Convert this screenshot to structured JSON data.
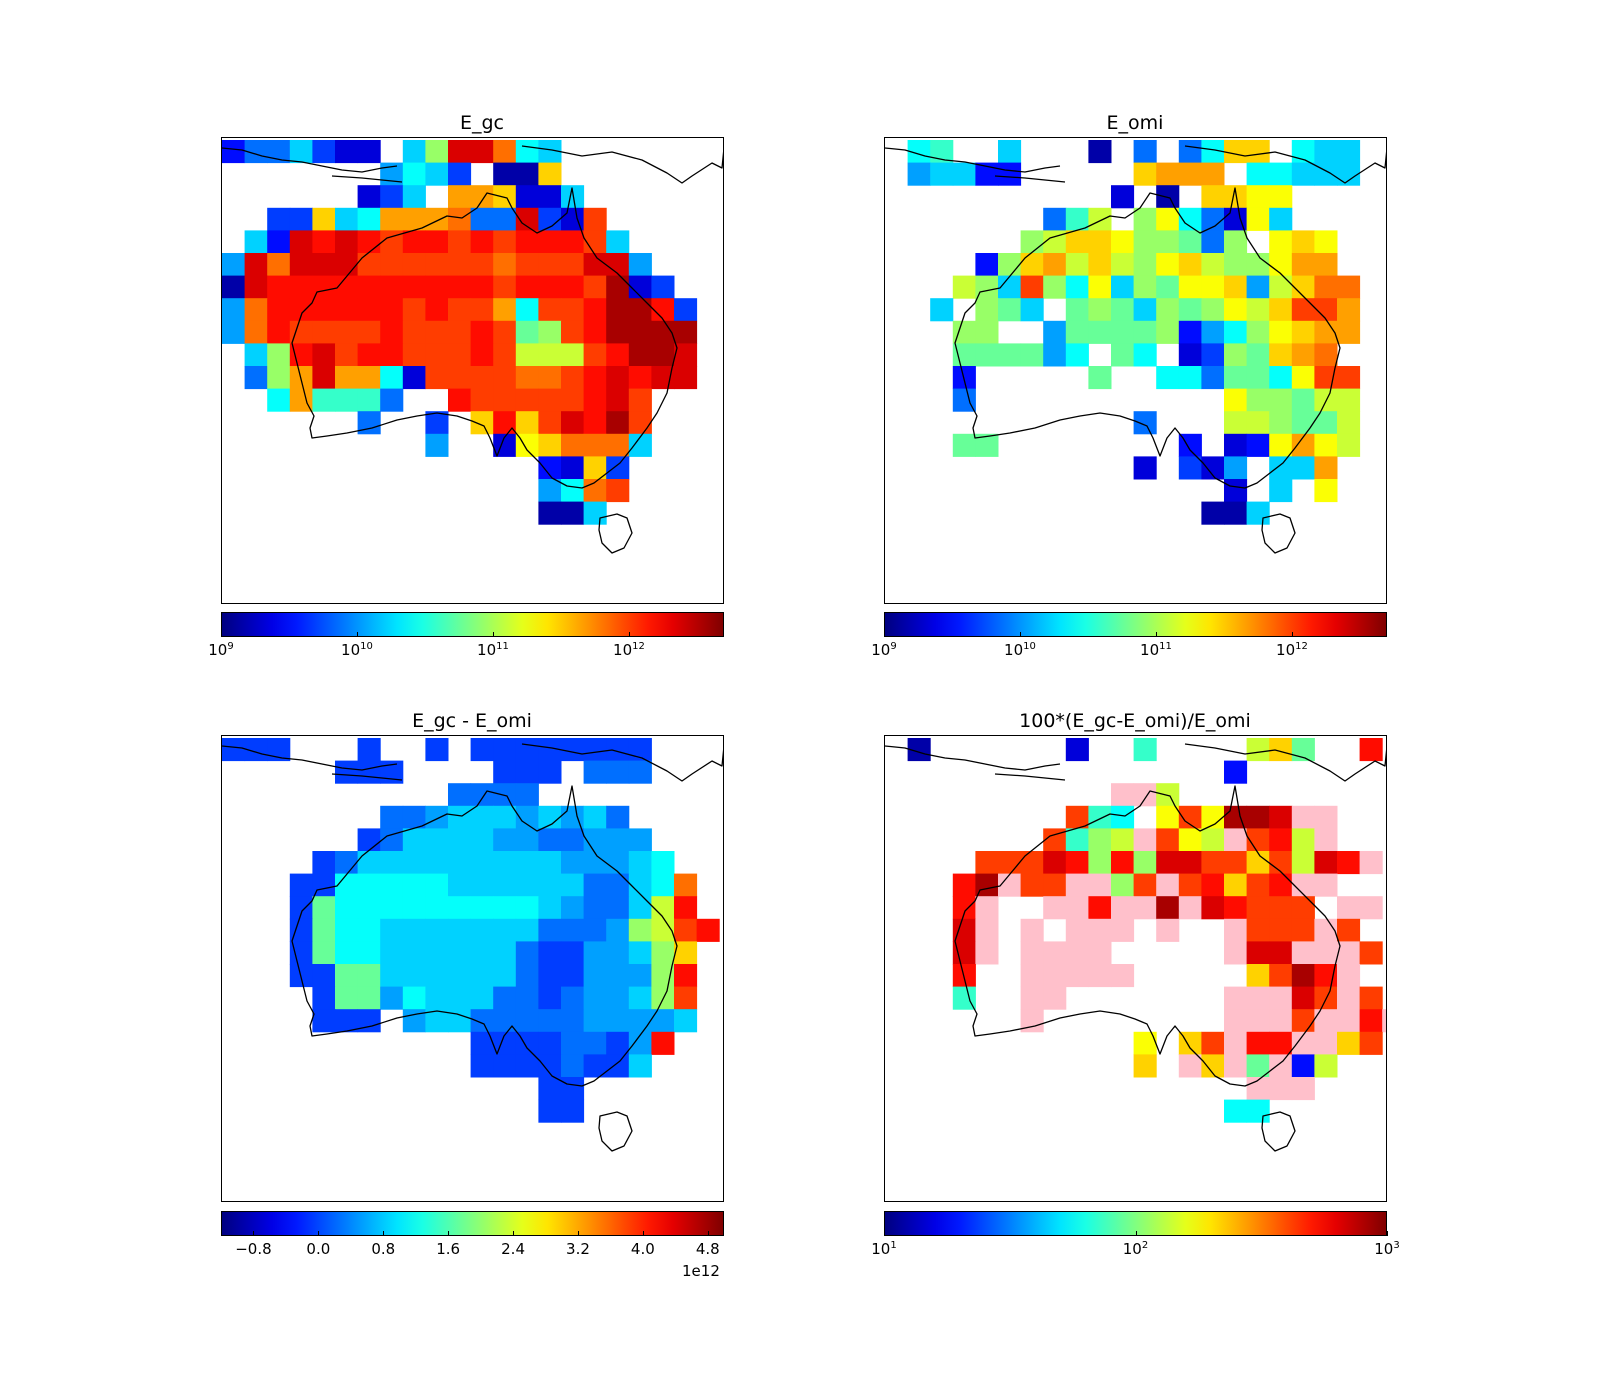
{
  "chart_data": [
    {
      "type": "heatmap",
      "title": "E_gc",
      "colormap": "jet",
      "scale": "log",
      "colorbar_range": [
        1000000000.0,
        5000000000000.0
      ],
      "colorbar_ticks": [
        {
          "base": "10",
          "exp": "9"
        },
        {
          "base": "10",
          "exp": "10"
        },
        {
          "base": "10",
          "exp": "11"
        },
        {
          "base": "10",
          "exp": "12"
        }
      ],
      "missing_color": "#808080",
      "region": "Australia",
      "grid_rows": [
        "ceegdbb.gkssphg.......",
        ".......fhgd.aan.......",
        "......bdg.oonbbg......",
        "..ddnghooopeesdbq.....",
        ".gcsrsrqrrqrqrrrqg....",
        "fspsssqqqqqqpqqqssf...",
        "asrrrrrrrrrrqrrrqtbd..",
        "fprrrrrrqrqqohqqrttrd.",
        "fprqqqqrqqqrqjkqrtttt.",
        ".gkrsqrrqqqrqlllqrtts.",
        ".ekosoohbqqqqppqrsrss.",
        "..hoiiie..rqqqqqrsq...",
        "......e..d.nrnqsrtq...",
        ".........f..bmnpppg...",
        "..............cbnd....",
        "..............fhpq....",
        "..............aag....."
      ]
    },
    {
      "type": "heatmap",
      "title": "E_omi",
      "colormap": "jet",
      "scale": "log",
      "colorbar_range": [
        1000000000.0,
        5000000000000.0
      ],
      "colorbar_ticks": [
        {
          "base": "10",
          "exp": "9"
        },
        {
          "base": "10",
          "exp": "10"
        },
        {
          "base": "10",
          "exp": "11"
        },
        {
          "base": "10",
          "exp": "12"
        }
      ],
      "missing_color": "#808080",
      "region": "Australia",
      "grid_rows": [
        ".hi..g...a.e.ehnn.hgg.",
        ".fggcc.....nooo.hhggg.",
        "..........b.a.nnmm....",
        ".......eil.kmhebmg....",
        "......klnnmkkjek.mnm..",
        "....cknolnlkmnlkkmoo..",
        "...lkgqkhmgkjmmnflnpp.",
        "..g.kjg.jkjgkjkmlnqqo.",
        "...kk..fjjjjkcfhkmnoo.",
        "...jjjjfh.jh.bdkjnop..",
        "...c.....j..hhejjhmqq.",
        "...e...........mkkjll.",
        "...........e...llkjjl.",
        "...jj........c.bcmoml.",
        "...........b.dbf.ggo..",
        "...............b.g.m..",
        "..............aag....."
      ]
    },
    {
      "type": "heatmap",
      "title": "E_gc - E_omi",
      "colormap": "jet",
      "scale": "linear",
      "colorbar_range": [
        -1200000000000.0,
        5000000000000.0
      ],
      "colorbar_ticks": [
        "−0.8",
        "0.0",
        "0.8",
        "1.6",
        "2.4",
        "3.2",
        "4.0",
        "4.8"
      ],
      "colorbar_offset": "1e12",
      "missing_color": "#808080",
      "region": "Australia",
      "grid_rows": [
        "ddd...d..d.dddddddd...",
        ".....ddd....ddd.eee...",
        "..........eeee........",
        ".......eefgggfgfge....",
        "......deggggffeefff...",
        "....degggggggggfffgh..",
        "...ddhhhhhggggggeeghp..",
        "...djhhhhhhhhhgfeeglr.",
        "...djhhgggggggeeefklqr",
        "...djhhggggggeddffgkn.",
        "...ddjjggggggeddfffkr.",
        "....djjfhgggeedeffgkq.",
        "....ddd.fggeeeeeffffg.",
        "...........ddddeedfr..",
        "...........ddddeddg...",
        "..............dd......",
        "..............dd......"
      ]
    },
    {
      "type": "heatmap",
      "title": "100*(E_gc-E_omi)/E_omi",
      "colormap": "jet",
      "scale": "log",
      "colorbar_range": [
        10,
        1000
      ],
      "colorbar_ticks": [
        {
          "base": "10",
          "exp": "1"
        },
        {
          "base": "10",
          "exp": "2"
        },
        {
          "base": "10",
          "exp": "3"
        }
      ],
      "missing_color": "#808080",
      "region": "Australia",
      "grid_rows": [
        ".a......b..i....lnj..r",
        "...............c......",
        "..........ppl.........",
        "........qih.mqmttspo..",
        ".......qiklpqmlpqrlp..",
        "....qqqsrkrkssqqnqlsrp",
        "...rtpqqppkqpqrnqrpp..",
        "...rp..pprpptpsrqqq.pp",
        "...sp.p.ppp.p..pqqqpq.",
        "...sp.pppp.....psspppq",
        "...r..ppppp.....nqtrp..",
        "...i..pp.......pppsqpq",
        "......p........pppqpprp",
        "...........m.nqprrppnq.",
        "...........n.pnpjpcl..",
        "................ppp...",
        "...............hh....."
      ]
    }
  ]
}
